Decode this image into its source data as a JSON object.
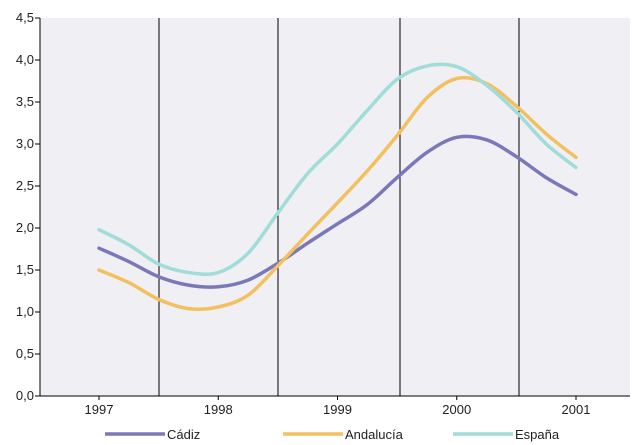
{
  "chart_data": {
    "type": "line",
    "title": "",
    "xlabel": "",
    "ylabel": "",
    "ylim": [
      0,
      4.5
    ],
    "y_ticks": [
      "0,0",
      "0,5",
      "1,0",
      "1,5",
      "2,0",
      "2,5",
      "3,0",
      "3,5",
      "4,0",
      "4,5"
    ],
    "x_ticks": [
      "1997",
      "1998",
      "1999",
      "2000",
      "2001"
    ],
    "x": [
      0.0,
      0.25,
      0.5,
      0.75,
      1.0,
      1.25,
      1.5,
      1.75,
      2.0,
      2.25,
      2.5,
      2.75,
      3.0,
      3.25,
      3.5,
      3.75,
      4.0
    ],
    "grid": true,
    "legend_position": "bottom",
    "colors": {
      "plot_background": "#efeff4",
      "axis": "#000000"
    },
    "series": [
      {
        "name": "Cádiz",
        "color": "#7a78b8",
        "values": [
          1.76,
          1.6,
          1.42,
          1.32,
          1.3,
          1.38,
          1.58,
          1.82,
          2.05,
          2.28,
          2.6,
          2.9,
          3.08,
          3.05,
          2.85,
          2.6,
          2.4
        ]
      },
      {
        "name": "Andalucía",
        "color": "#f3c060",
        "values": [
          1.5,
          1.35,
          1.15,
          1.04,
          1.06,
          1.2,
          1.55,
          1.93,
          2.3,
          2.68,
          3.1,
          3.55,
          3.78,
          3.72,
          3.45,
          3.12,
          2.84
        ]
      },
      {
        "name": "España",
        "color": "#a0dcd8",
        "values": [
          1.98,
          1.8,
          1.57,
          1.47,
          1.47,
          1.7,
          2.18,
          2.65,
          3.0,
          3.4,
          3.77,
          3.93,
          3.92,
          3.7,
          3.38,
          3.0,
          2.72
        ]
      }
    ]
  }
}
